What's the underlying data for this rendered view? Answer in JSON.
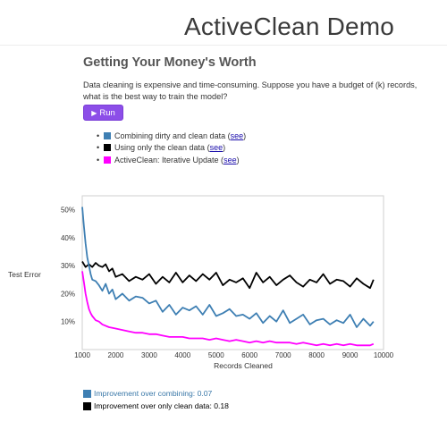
{
  "header": {
    "title": "ActiveClean Demo"
  },
  "section": {
    "heading": "Getting Your Money's Worth",
    "intro_text": "Data cleaning is expensive and time-consuming. Suppose you have a budget of (k) records, what is the best way to train the model?",
    "run_label": "Run",
    "run_icon": "play-icon"
  },
  "legend": {
    "link_text": "see",
    "items": [
      {
        "label": "Combining dirty and clean data (",
        "color": "#3e7fb3"
      },
      {
        "label": "Using only the clean data (",
        "color": "#000000"
      },
      {
        "label": "ActiveClean: Iterative Update (",
        "color": "#ff00ff"
      }
    ],
    "suffix": ")"
  },
  "results": [
    {
      "label": "Improvement over combining: 0.07",
      "color": "#3e7fb3"
    },
    {
      "label": "Improvement over only clean data: 0.18",
      "color": "#000000"
    }
  ],
  "chart_data": {
    "type": "line",
    "xlabel": "Records Cleaned",
    "ylabel": "Test Error",
    "xlim": [
      1000,
      10000
    ],
    "ylim": [
      0,
      55
    ],
    "x_ticks": [
      "1000",
      "2000",
      "3000",
      "4000",
      "5000",
      "6000",
      "7000",
      "8000",
      "9000",
      "10000"
    ],
    "y_ticks": [
      "10%",
      "20%",
      "30%",
      "40%",
      "50%"
    ],
    "grid": false,
    "series": [
      {
        "color": "#000000",
        "x": [
          1000,
          1100,
          1200,
          1300,
          1400,
          1500,
          1600,
          1700,
          1800,
          1900,
          2000,
          2200,
          2400,
          2600,
          2800,
          3000,
          3200,
          3400,
          3600,
          3800,
          4000,
          4200,
          4400,
          4600,
          4800,
          5000,
          5200,
          5400,
          5600,
          5800,
          6000,
          6200,
          6400,
          6600,
          6800,
          7000,
          7200,
          7400,
          7600,
          7800,
          8000,
          8200,
          8400,
          8600,
          8800,
          9000,
          9200,
          9400,
          9600,
          9700
        ],
        "values": [
          31.5,
          29.5,
          30.5,
          29.5,
          31,
          30,
          29.5,
          30.5,
          28,
          29,
          26,
          27,
          24.5,
          26,
          25,
          27,
          23.5,
          26,
          24,
          27.5,
          24,
          26.5,
          24.5,
          27,
          25,
          27.5,
          23,
          25,
          24,
          25.5,
          22,
          27.5,
          24,
          26,
          23,
          25,
          26.5,
          24,
          22.5,
          25,
          24,
          27,
          23.5,
          25,
          24.5,
          22.5,
          25.5,
          23.5,
          22,
          25
        ]
      },
      {
        "color": "#3e7fb3",
        "x": [
          1000,
          1050,
          1100,
          1150,
          1200,
          1250,
          1300,
          1400,
          1500,
          1600,
          1700,
          1800,
          1900,
          2000,
          2200,
          2400,
          2600,
          2800,
          3000,
          3200,
          3400,
          3600,
          3800,
          4000,
          4200,
          4400,
          4600,
          4800,
          5000,
          5200,
          5400,
          5600,
          5800,
          6000,
          6200,
          6400,
          6600,
          6800,
          7000,
          7200,
          7400,
          7600,
          7800,
          8000,
          8200,
          8400,
          8600,
          8800,
          9000,
          9200,
          9400,
          9600,
          9700
        ],
        "values": [
          51,
          44,
          38,
          33,
          30,
          27,
          25,
          24.5,
          23,
          21,
          23.5,
          20,
          21.5,
          18,
          20,
          17.5,
          19,
          18.5,
          16.5,
          17.5,
          13.5,
          16,
          12.5,
          15,
          14,
          15.5,
          12.5,
          16,
          12,
          13,
          14.5,
          12,
          12.5,
          11,
          13,
          9.5,
          12,
          10,
          14,
          9.5,
          11,
          12.5,
          9,
          10.5,
          11,
          9,
          10.5,
          9.5,
          12.5,
          8,
          11,
          8.5,
          10
        ]
      },
      {
        "color": "#ff00ff",
        "x": [
          1000,
          1050,
          1100,
          1150,
          1200,
          1250,
          1300,
          1400,
          1500,
          1600,
          1800,
          2000,
          2200,
          2400,
          2600,
          2800,
          3000,
          3200,
          3400,
          3600,
          3800,
          4000,
          4200,
          4400,
          4600,
          4800,
          5000,
          5200,
          5400,
          5600,
          5800,
          6000,
          6200,
          6400,
          6600,
          6800,
          7000,
          7200,
          7400,
          7600,
          7800,
          8000,
          8200,
          8400,
          8600,
          8800,
          9000,
          9200,
          9400,
          9600,
          9700
        ],
        "values": [
          28,
          24,
          20,
          17,
          14.5,
          13,
          12,
          10.5,
          10,
          9,
          8,
          7.5,
          7,
          6.5,
          6,
          6,
          5.5,
          5.5,
          5,
          4.5,
          4.5,
          4.5,
          4,
          4,
          4,
          3.5,
          4,
          3.5,
          3,
          3.5,
          3,
          2.5,
          3,
          2.5,
          3,
          2.5,
          2.5,
          2.5,
          2,
          2.5,
          2,
          1.5,
          2,
          1.5,
          2,
          1.5,
          2,
          1.5,
          1.5,
          1.5,
          2
        ]
      }
    ]
  }
}
